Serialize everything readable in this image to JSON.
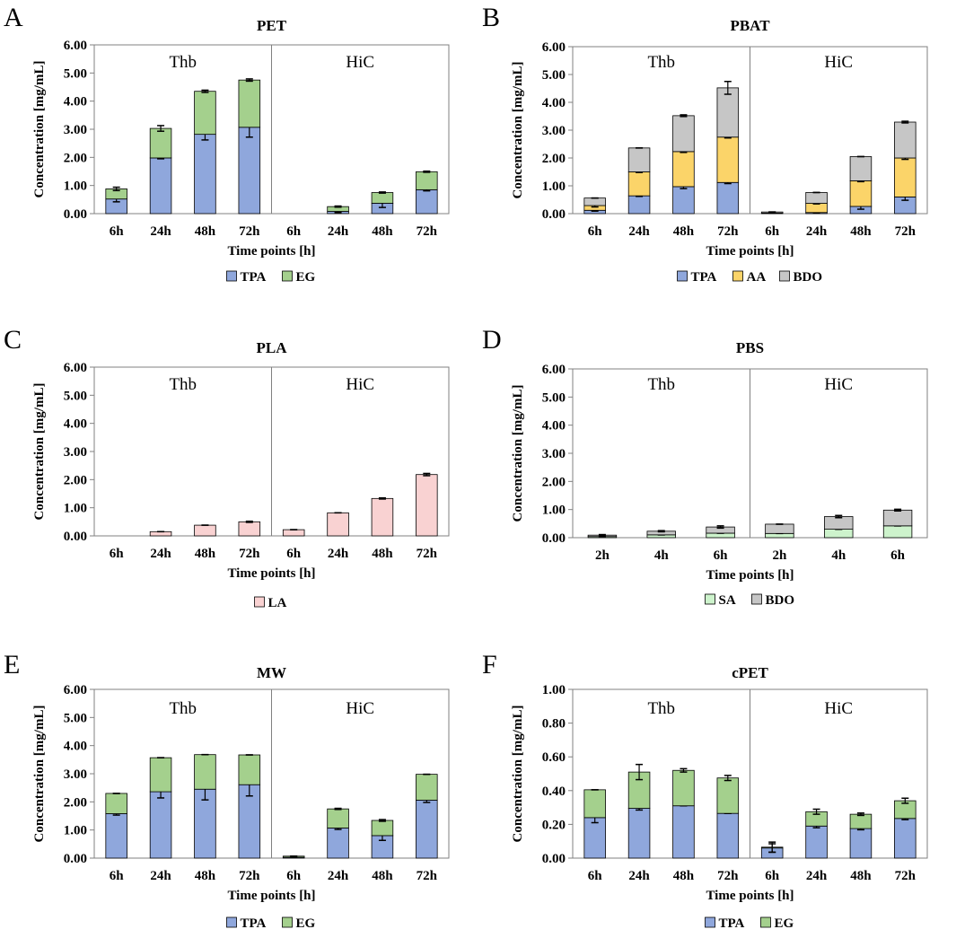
{
  "colors": {
    "TPA": "#8fa7dc",
    "EG": "#a4d08d",
    "AA": "#fbd469",
    "BDO": "#c6c6c6",
    "LA": "#f9d2d2",
    "SA": "#cdf3cc"
  },
  "chart_data": [
    {
      "type": "bar",
      "stacked": true,
      "panel": "A",
      "title": "PET",
      "xlabel": "Time points [h]",
      "ylabel": "Concentration  [mg/mL]",
      "ylim": [
        0,
        6
      ],
      "yticks": [
        "0.00",
        "1.00",
        "2.00",
        "3.00",
        "4.00",
        "5.00",
        "6.00"
      ],
      "groups": [
        "Thb",
        "HiC"
      ],
      "categories": [
        "6h",
        "24h",
        "48h",
        "72h",
        "6h",
        "24h",
        "48h",
        "72h"
      ],
      "series": [
        {
          "name": "TPA",
          "values": [
            0.52,
            1.98,
            2.82,
            3.07,
            0,
            0.08,
            0.37,
            0.85
          ],
          "errors": [
            0.1,
            0.03,
            0.2,
            0.35,
            0,
            0.04,
            0.15,
            0.04
          ]
        },
        {
          "name": "EG",
          "values": [
            0.36,
            1.05,
            1.53,
            1.68,
            0,
            0.17,
            0.38,
            0.64
          ],
          "errors": [
            0.06,
            0.1,
            0.04,
            0.04,
            0,
            0.02,
            0.02,
            0.02
          ]
        }
      ]
    },
    {
      "type": "bar",
      "stacked": true,
      "panel": "B",
      "title": "PBAT",
      "xlabel": "Time points [h]",
      "ylabel": "Concentration  [mg/mL]",
      "ylim": [
        0,
        6
      ],
      "yticks": [
        "0.00",
        "1.00",
        "2.00",
        "3.00",
        "4.00",
        "5.00",
        "6.00"
      ],
      "groups": [
        "Thb",
        "HiC"
      ],
      "categories": [
        "6h",
        "24h",
        "48h",
        "72h",
        "6h",
        "24h",
        "48h",
        "72h"
      ],
      "series": [
        {
          "name": "TPA",
          "values": [
            0.12,
            0.64,
            0.97,
            1.12,
            0.02,
            0.04,
            0.26,
            0.6
          ],
          "errors": [
            0.03,
            0.02,
            0.07,
            0.04,
            0,
            0.02,
            0.1,
            0.12
          ]
        },
        {
          "name": "AA",
          "values": [
            0.17,
            0.86,
            1.26,
            1.63,
            0,
            0.33,
            0.92,
            1.4
          ],
          "errors": [
            0.05,
            0.02,
            0.03,
            0.03,
            0,
            0.02,
            0.03,
            0.05
          ]
        },
        {
          "name": "BDO",
          "values": [
            0.27,
            0.86,
            1.29,
            1.77,
            0.04,
            0.39,
            0.87,
            1.29
          ],
          "errors": [
            0,
            0,
            0.03,
            0.23,
            0,
            0,
            0,
            0.03
          ]
        }
      ]
    },
    {
      "type": "bar",
      "stacked": true,
      "panel": "C",
      "title": "PLA",
      "xlabel": "Time points [h]",
      "ylabel": "Concentration  [mg/mL]",
      "ylim": [
        0,
        6
      ],
      "yticks": [
        "0.00",
        "1.00",
        "2.00",
        "3.00",
        "4.00",
        "5.00",
        "6.00"
      ],
      "groups": [
        "Thb",
        "HiC"
      ],
      "categories": [
        "6h",
        "24h",
        "48h",
        "72h",
        "6h",
        "24h",
        "48h",
        "72h"
      ],
      "series": [
        {
          "name": "LA",
          "values": [
            0,
            0.15,
            0.38,
            0.5,
            0.22,
            0.82,
            1.33,
            2.18
          ],
          "errors": [
            0,
            0,
            0,
            0.02,
            0,
            0,
            0.02,
            0.04
          ]
        }
      ]
    },
    {
      "type": "bar",
      "stacked": true,
      "panel": "D",
      "title": "PBS",
      "xlabel": "Time points [h]",
      "ylabel": "Concentration  [mg/mL]",
      "ylim": [
        0,
        6
      ],
      "yticks": [
        "0.00",
        "1.00",
        "2.00",
        "3.00",
        "4.00",
        "5.00",
        "6.00"
      ],
      "groups": [
        "Thb",
        "HiC"
      ],
      "categories": [
        "2h",
        "4h",
        "6h",
        "2h",
        "4h",
        "6h"
      ],
      "series": [
        {
          "name": "SA",
          "values": [
            0.04,
            0.1,
            0.16,
            0.15,
            0.3,
            0.42
          ],
          "errors": [
            0,
            0,
            0,
            0,
            0,
            0
          ]
        },
        {
          "name": "BDO",
          "values": [
            0.05,
            0.13,
            0.22,
            0.33,
            0.45,
            0.56
          ],
          "errors": [
            0.02,
            0.02,
            0.04,
            0,
            0.04,
            0.03
          ]
        }
      ]
    },
    {
      "type": "bar",
      "stacked": true,
      "panel": "E",
      "title": "MW",
      "xlabel": "Time points [h]",
      "ylabel": "Concentration  [mg/mL]",
      "ylim": [
        0,
        6
      ],
      "yticks": [
        "0.00",
        "1.00",
        "2.00",
        "3.00",
        "4.00",
        "5.00",
        "6.00"
      ],
      "groups": [
        "Thb",
        "HiC"
      ],
      "categories": [
        "6h",
        "24h",
        "48h",
        "72h",
        "6h",
        "24h",
        "48h",
        "72h"
      ],
      "series": [
        {
          "name": "TPA",
          "values": [
            1.58,
            2.36,
            2.45,
            2.61,
            0.03,
            1.07,
            0.8,
            2.06
          ],
          "errors": [
            0.05,
            0.22,
            0.38,
            0.4,
            0,
            0.05,
            0.17,
            0.08
          ]
        },
        {
          "name": "EG",
          "values": [
            0.72,
            1.21,
            1.23,
            1.06,
            0.04,
            0.68,
            0.54,
            0.92
          ],
          "errors": [
            0,
            0,
            0,
            0,
            0,
            0.02,
            0.03,
            0
          ]
        }
      ]
    },
    {
      "type": "bar",
      "stacked": true,
      "panel": "F",
      "title": "cPET",
      "xlabel": "Time points [h]",
      "ylabel": "Concentration  [mg/mL]",
      "ylim": [
        0,
        1
      ],
      "yticks": [
        "0.00",
        "0.20",
        "0.40",
        "0.60",
        "0.80",
        "1.00"
      ],
      "groups": [
        "Thb",
        "HiC"
      ],
      "categories": [
        "6h",
        "24h",
        "48h",
        "72h",
        "6h",
        "24h",
        "48h",
        "72h"
      ],
      "series": [
        {
          "name": "TPA",
          "values": [
            0.24,
            0.295,
            0.31,
            0.265,
            0.06,
            0.19,
            0.175,
            0.235
          ],
          "errors": [
            0.03,
            0.01,
            0,
            0,
            0.025,
            0.01,
            0.007,
            0.007
          ]
        },
        {
          "name": "EG",
          "values": [
            0.165,
            0.215,
            0.21,
            0.21,
            0.005,
            0.085,
            0.085,
            0.105
          ],
          "errors": [
            0,
            0.045,
            0.01,
            0.015,
            0.03,
            0.015,
            0.007,
            0.015
          ]
        }
      ]
    }
  ]
}
